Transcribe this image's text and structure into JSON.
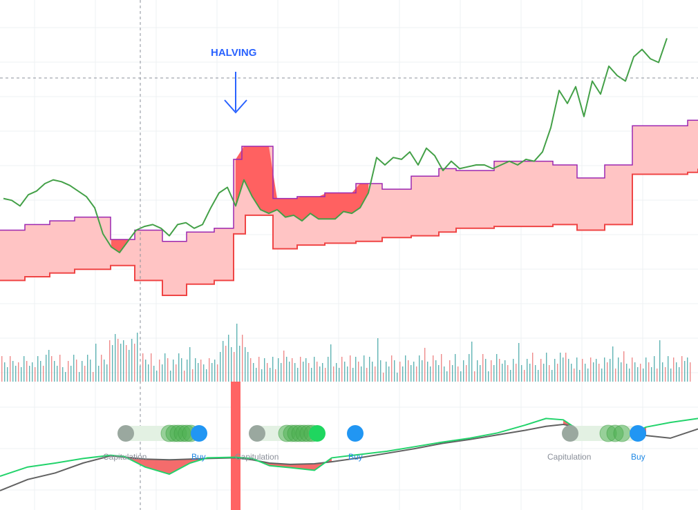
{
  "annotation": {
    "label": "HALVING",
    "color": "#2962ff"
  },
  "colors": {
    "price": "#43a047",
    "band_fill": "#ffc4c4",
    "band_upper": "#9c27b0",
    "band_lower": "#ef4444",
    "price_below_upper": "#ff6161",
    "volume_up": "#5fb3b3",
    "volume_down": "#ef8a8a",
    "osc_fast": "#22d36b",
    "osc_slow": "#616161",
    "osc_fill": "#f25252",
    "halving_bar": "#ff6464",
    "dot_capitulation": "#9aa89f",
    "dot_green": "#4caf50",
    "dot_buy": "#2196f3",
    "dot_bright_green": "#1fd65f",
    "label_capitulation": "#8a8f99",
    "label_buy": "#1e88e5"
  },
  "signals": [
    {
      "capitulation_label": "Capitulation",
      "buy_label": "Buy"
    },
    {
      "capitulation_label": "Capitulation",
      "buy_label": "Buy"
    },
    {
      "capitulation_label": "Capitulation",
      "buy_label": "Buy"
    }
  ],
  "chart_data": {
    "type": "line",
    "title": "",
    "xlabel": "",
    "ylabel": "",
    "grid": true,
    "price_range": [
      0,
      100
    ],
    "price_series": {
      "x": [
        0,
        12,
        24,
        36,
        48,
        60,
        72,
        84,
        96,
        108,
        120,
        132,
        144,
        156,
        168,
        180,
        192,
        204,
        216,
        228,
        240,
        252,
        264,
        276,
        288,
        300,
        312,
        324,
        336,
        348,
        360,
        372,
        384,
        396,
        408,
        420,
        432,
        444,
        456,
        468,
        480,
        492,
        504,
        516,
        528,
        540,
        552,
        564,
        576,
        588,
        600,
        612,
        624,
        636,
        648,
        660,
        672,
        684,
        696,
        708,
        720,
        732,
        744,
        756,
        768,
        780,
        792,
        804,
        816,
        828,
        840,
        852,
        864,
        876,
        888,
        900,
        912,
        924,
        936,
        948,
        960
      ],
      "values": [
        62,
        61,
        58,
        64,
        66,
        70,
        72,
        71,
        69,
        66,
        63,
        57,
        43,
        36,
        33,
        39,
        45,
        47,
        48,
        46,
        42,
        48,
        49,
        46,
        48,
        57,
        65,
        68,
        58,
        72,
        63,
        56,
        54,
        56,
        52,
        53,
        50,
        54,
        51,
        51,
        51,
        55,
        54,
        57,
        65,
        84,
        80,
        84,
        83,
        87,
        80,
        89,
        85,
        77,
        82,
        78,
        79,
        80,
        80,
        78,
        80,
        82,
        80,
        83,
        82,
        87,
        100,
        120,
        113,
        122,
        106,
        125,
        118,
        133,
        128,
        125,
        138,
        142,
        137,
        135,
        148
      ]
    },
    "upper_band": {
      "x": [
        0,
        36,
        72,
        108,
        160,
        195,
        235,
        270,
        310,
        338,
        350,
        395,
        430,
        470,
        515,
        553,
        595,
        635,
        660,
        715,
        800,
        835,
        875,
        915,
        995,
        1010
      ],
      "values": [
        45,
        48,
        50,
        52,
        40,
        45,
        39,
        44,
        46,
        83,
        90,
        62,
        63,
        65,
        70,
        67,
        74,
        78,
        77,
        82,
        80,
        73,
        80,
        101,
        104,
        104
      ]
    },
    "lower_band": {
      "x": [
        0,
        36,
        72,
        108,
        160,
        195,
        235,
        270,
        310,
        338,
        355,
        395,
        430,
        470,
        515,
        553,
        595,
        635,
        660,
        715,
        800,
        835,
        875,
        915,
        995,
        1010
      ],
      "values": [
        18,
        20,
        22,
        24,
        26,
        18,
        10,
        16,
        18,
        43,
        53,
        35,
        37,
        38,
        39,
        41,
        42,
        44,
        46,
        47,
        48,
        45,
        48,
        75,
        76,
        78
      ]
    },
    "reference_value": 107,
    "halving_x": 341,
    "oscillator": {
      "x": [
        0,
        40,
        80,
        120,
        160,
        180,
        210,
        245,
        275,
        300,
        340,
        365,
        390,
        420,
        455,
        480,
        520,
        560,
        600,
        640,
        680,
        720,
        760,
        790,
        815,
        845,
        870,
        885,
        905,
        935,
        970,
        1010
      ],
      "fast": [
        0,
        14,
        20,
        27,
        32,
        30,
        14,
        3,
        20,
        28,
        29,
        27,
        16,
        13,
        9,
        28,
        33,
        38,
        45,
        52,
        58,
        66,
        78,
        88,
        86,
        65,
        60,
        55,
        62,
        75,
        82,
        88
      ],
      "slow": [
        -22,
        -5,
        5,
        20,
        31,
        29,
        26,
        25,
        26,
        27,
        28,
        25,
        20,
        18,
        19,
        22,
        28,
        35,
        42,
        50,
        56,
        63,
        70,
        76,
        79,
        73,
        66,
        62,
        68,
        62,
        58,
        72
      ]
    }
  }
}
